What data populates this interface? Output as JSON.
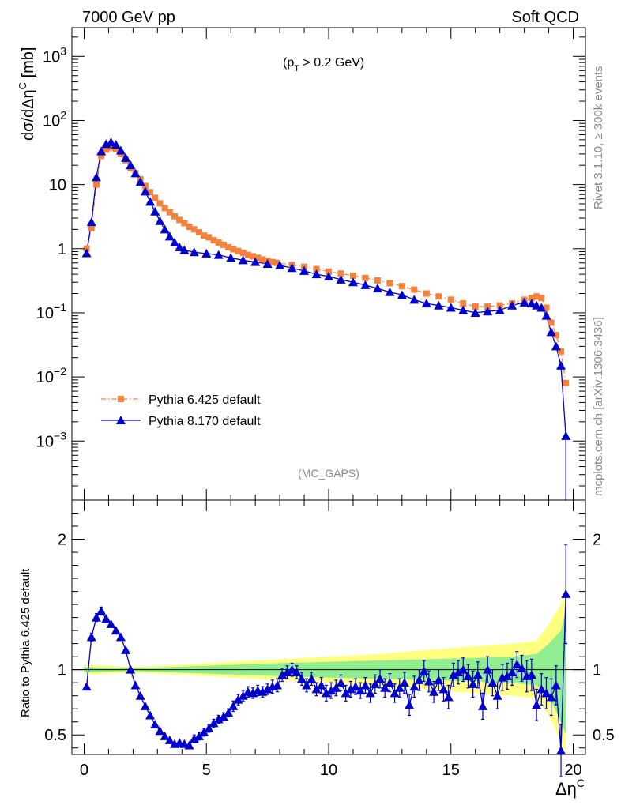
{
  "header": {
    "energy_label": "7000 GeV pp",
    "process_label": "Soft QCD",
    "cut_label_main": "(p",
    "cut_label_sub": "T",
    "cut_label_rest": " > 0.2 GeV)",
    "analysis_tag": "(MC_GAPS)"
  },
  "side_labels": {
    "rivet": "Rivet 3.1.10, ≥ 300k events",
    "mcplots": "mcplots.cern.ch [arXiv:1306.3436]"
  },
  "colors": {
    "pythia6": "#f5823c",
    "pythia8": "#0000cc",
    "band_green": "#90ee90",
    "band_yellow": "#ffff80"
  },
  "chart_data": [
    {
      "type": "line",
      "title": "",
      "ylabel": "dσ/dΔη^C [mb]",
      "ylabel_parts": [
        "dσ/dΔη",
        "C",
        " [mb]"
      ],
      "yscale": "log",
      "xlim": [
        -0.5,
        20.5
      ],
      "ylim": [
        0.00012,
        2800
      ],
      "yticks": [
        {
          "value": 0.001,
          "base": "10",
          "exp": "−3"
        },
        {
          "value": 0.01,
          "base": "10",
          "exp": "−2"
        },
        {
          "value": 0.1,
          "base": "10",
          "exp": "−1"
        },
        {
          "value": 1,
          "base": "1",
          "exp": ""
        },
        {
          "value": 10,
          "base": "10",
          "exp": ""
        },
        {
          "value": 100,
          "base": "10",
          "exp": "2"
        },
        {
          "value": 1000,
          "base": "10",
          "exp": "3"
        }
      ],
      "legend_position": "bottom-left",
      "series": [
        {
          "name": "Pythia 6.425 default",
          "marker": "square",
          "line": "dash-dot",
          "x": [
            0.1,
            0.3,
            0.5,
            0.7,
            0.9,
            1.1,
            1.3,
            1.5,
            1.7,
            1.9,
            2.1,
            2.3,
            2.5,
            2.7,
            2.9,
            3.1,
            3.3,
            3.5,
            3.7,
            3.9,
            4.1,
            4.3,
            4.5,
            4.7,
            4.9,
            5.1,
            5.3,
            5.5,
            5.7,
            5.9,
            6.1,
            6.3,
            6.5,
            6.7,
            6.9,
            7.1,
            7.3,
            7.5,
            7.7,
            7.9,
            8.5,
            9.0,
            9.5,
            10.0,
            10.5,
            11.0,
            11.5,
            12.0,
            12.5,
            13.0,
            13.5,
            14.0,
            14.5,
            15.0,
            15.5,
            16.0,
            16.5,
            17.0,
            17.5,
            18.0,
            18.3,
            18.5,
            18.7,
            18.9,
            19.1,
            19.3,
            19.5,
            19.7
          ],
          "y": [
            1.0,
            2.1,
            10,
            28,
            35,
            38,
            36,
            30,
            24,
            18,
            15,
            12,
            9.5,
            7.6,
            6.2,
            5.1,
            4.3,
            3.7,
            3.2,
            2.8,
            2.5,
            2.2,
            2.0,
            1.8,
            1.6,
            1.5,
            1.35,
            1.25,
            1.15,
            1.05,
            0.98,
            0.92,
            0.86,
            0.8,
            0.76,
            0.72,
            0.68,
            0.65,
            0.62,
            0.6,
            0.56,
            0.52,
            0.48,
            0.44,
            0.41,
            0.38,
            0.35,
            0.32,
            0.29,
            0.26,
            0.23,
            0.2,
            0.18,
            0.16,
            0.14,
            0.125,
            0.125,
            0.13,
            0.14,
            0.16,
            0.17,
            0.18,
            0.17,
            0.12,
            0.07,
            0.045,
            0.025,
            0.008
          ]
        },
        {
          "name": "Pythia 8.170 default",
          "marker": "triangle",
          "line": "solid",
          "x": [
            0.1,
            0.3,
            0.5,
            0.7,
            0.9,
            1.1,
            1.3,
            1.5,
            1.7,
            1.9,
            2.1,
            2.3,
            2.5,
            2.7,
            2.9,
            3.1,
            3.3,
            3.5,
            3.7,
            3.9,
            4.1,
            4.5,
            5.0,
            5.5,
            6.0,
            6.5,
            7.0,
            7.5,
            8.0,
            8.5,
            9.0,
            9.5,
            10.0,
            10.5,
            11.0,
            11.5,
            12.0,
            12.5,
            13.0,
            13.5,
            14.0,
            14.5,
            15.0,
            15.5,
            16.0,
            16.5,
            17.0,
            17.5,
            18.0,
            18.3,
            18.5,
            18.7,
            18.9,
            19.1,
            19.3,
            19.5,
            19.7
          ],
          "y": [
            0.85,
            2.6,
            13,
            33,
            43,
            46,
            42,
            34,
            26,
            20,
            15,
            11,
            7.8,
            5.4,
            3.8,
            2.7,
            2.0,
            1.55,
            1.25,
            1.05,
            0.95,
            0.88,
            0.84,
            0.8,
            0.72,
            0.66,
            0.62,
            0.58,
            0.55,
            0.5,
            0.45,
            0.4,
            0.37,
            0.33,
            0.3,
            0.27,
            0.24,
            0.21,
            0.19,
            0.16,
            0.14,
            0.13,
            0.12,
            0.11,
            0.1,
            0.105,
            0.11,
            0.13,
            0.145,
            0.14,
            0.13,
            0.12,
            0.09,
            0.05,
            0.03,
            0.015,
            0.0012
          ]
        }
      ]
    },
    {
      "type": "line",
      "ylabel": "Ratio to Pythia 6.425 default",
      "xlabel": "Δη^C",
      "xlabel_parts": [
        "Δη",
        "C"
      ],
      "xlim": [
        -0.5,
        20.5
      ],
      "ylim": [
        0.35,
        2.3
      ],
      "xticks": [
        0,
        5,
        10,
        15,
        20
      ],
      "yticks": [
        0.5,
        1,
        2
      ],
      "reference_line": 1,
      "bands": [
        {
          "name": "uncertainty-yellow",
          "x": [
            0,
            2,
            5,
            8,
            10,
            12,
            14,
            16,
            17.5,
            18.5,
            19.0,
            19.5,
            19.7
          ],
          "upper": [
            1.04,
            1.02,
            1.05,
            1.08,
            1.1,
            1.12,
            1.15,
            1.18,
            1.2,
            1.22,
            1.35,
            1.5,
            1.7
          ],
          "lower": [
            0.96,
            0.98,
            0.95,
            0.92,
            0.9,
            0.88,
            0.85,
            0.82,
            0.8,
            0.78,
            0.65,
            0.45,
            0.35
          ]
        },
        {
          "name": "uncertainty-green",
          "x": [
            0,
            2,
            5,
            8,
            10,
            12,
            14,
            16,
            17.5,
            18.5,
            19.0,
            19.5,
            19.7
          ],
          "upper": [
            1.02,
            1.01,
            1.03,
            1.05,
            1.06,
            1.07,
            1.08,
            1.09,
            1.1,
            1.12,
            1.2,
            1.3,
            1.45
          ],
          "lower": [
            0.98,
            0.99,
            0.97,
            0.95,
            0.94,
            0.93,
            0.92,
            0.91,
            0.9,
            0.88,
            0.8,
            0.6,
            0.5
          ]
        }
      ],
      "series": [
        {
          "name": "Pythia 8.170 ratio",
          "marker": "triangle",
          "x": [
            0.1,
            0.3,
            0.5,
            0.7,
            0.9,
            1.1,
            1.3,
            1.5,
            1.7,
            1.9,
            2.1,
            2.3,
            2.5,
            2.7,
            2.9,
            3.1,
            3.3,
            3.5,
            3.7,
            3.9,
            4.1,
            4.3,
            4.5,
            4.7,
            4.9,
            5.1,
            5.3,
            5.5,
            5.7,
            5.9,
            6.1,
            6.3,
            6.5,
            6.7,
            6.9,
            7.1,
            7.3,
            7.5,
            7.7,
            7.9,
            8.1,
            8.3,
            8.5,
            8.7,
            8.9,
            9.1,
            9.3,
            9.5,
            9.7,
            9.9,
            10.1,
            10.3,
            10.5,
            10.7,
            10.9,
            11.1,
            11.3,
            11.5,
            11.7,
            11.9,
            12.1,
            12.3,
            12.5,
            12.7,
            12.9,
            13.1,
            13.3,
            13.5,
            13.7,
            13.9,
            14.1,
            14.3,
            14.5,
            14.7,
            14.9,
            15.1,
            15.3,
            15.5,
            15.7,
            15.9,
            16.1,
            16.3,
            16.5,
            16.7,
            16.9,
            17.1,
            17.3,
            17.5,
            17.7,
            17.9,
            18.1,
            18.3,
            18.5,
            18.7,
            18.9,
            19.1,
            19.3,
            19.5,
            19.7
          ],
          "y": [
            0.87,
            1.25,
            1.4,
            1.45,
            1.39,
            1.35,
            1.3,
            1.25,
            1.15,
            1.0,
            0.88,
            0.8,
            0.72,
            0.65,
            0.58,
            0.53,
            0.49,
            0.46,
            0.43,
            0.44,
            0.43,
            0.42,
            0.47,
            0.49,
            0.52,
            0.55,
            0.59,
            0.62,
            0.64,
            0.67,
            0.72,
            0.77,
            0.8,
            0.83,
            0.82,
            0.84,
            0.83,
            0.85,
            0.87,
            0.88,
            0.96,
            0.98,
            1.0,
            0.98,
            0.93,
            0.88,
            0.93,
            0.85,
            0.88,
            0.82,
            0.84,
            0.86,
            0.9,
            0.82,
            0.85,
            0.87,
            0.84,
            0.88,
            0.82,
            0.89,
            0.93,
            0.86,
            0.9,
            0.82,
            0.86,
            0.9,
            0.73,
            0.87,
            0.92,
            0.99,
            0.91,
            0.83,
            0.92,
            0.85,
            0.79,
            0.96,
            0.98,
            1.0,
            0.95,
            0.89,
            0.96,
            0.72,
            1.0,
            0.9,
            0.8,
            0.94,
            0.95,
            0.98,
            1.04,
            1.01,
            0.95,
            0.96,
            0.73,
            0.85,
            0.82,
            0.79,
            0.88,
            0.38,
            1.58
          ],
          "yerr": [
            0.02,
            0.03,
            0.03,
            0.03,
            0.02,
            0.02,
            0.02,
            0.02,
            0.02,
            0.02,
            0.02,
            0.02,
            0.02,
            0.02,
            0.02,
            0.02,
            0.02,
            0.02,
            0.02,
            0.02,
            0.02,
            0.02,
            0.03,
            0.03,
            0.03,
            0.03,
            0.03,
            0.03,
            0.03,
            0.03,
            0.04,
            0.04,
            0.04,
            0.04,
            0.04,
            0.04,
            0.04,
            0.04,
            0.05,
            0.05,
            0.05,
            0.05,
            0.05,
            0.05,
            0.05,
            0.05,
            0.05,
            0.05,
            0.06,
            0.06,
            0.06,
            0.06,
            0.06,
            0.06,
            0.06,
            0.06,
            0.06,
            0.06,
            0.07,
            0.07,
            0.07,
            0.07,
            0.07,
            0.07,
            0.07,
            0.08,
            0.08,
            0.08,
            0.08,
            0.08,
            0.08,
            0.08,
            0.08,
            0.09,
            0.09,
            0.09,
            0.09,
            0.09,
            0.09,
            0.1,
            0.1,
            0.1,
            0.1,
            0.1,
            0.1,
            0.1,
            0.1,
            0.1,
            0.1,
            0.1,
            0.12,
            0.12,
            0.12,
            0.12,
            0.12,
            0.14,
            0.15,
            0.2,
            0.38
          ]
        }
      ]
    }
  ]
}
